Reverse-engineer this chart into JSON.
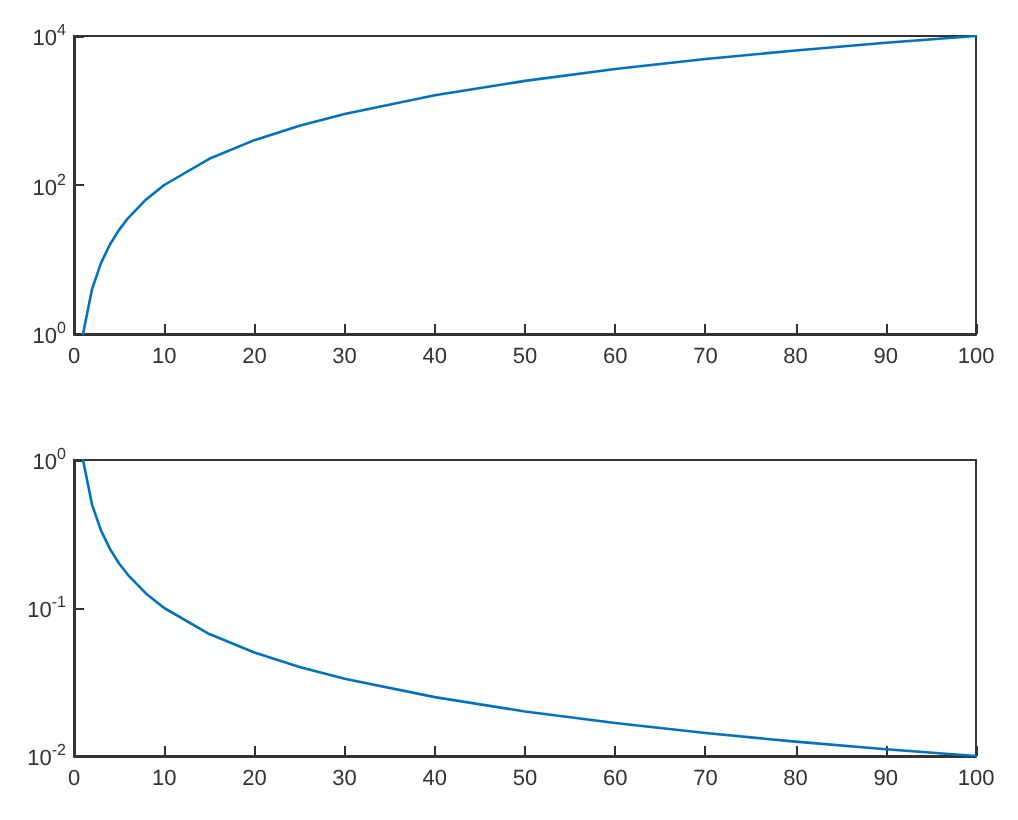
{
  "chart_data": [
    {
      "type": "line",
      "x": [
        1,
        2,
        3,
        4,
        5,
        6,
        8,
        10,
        15,
        20,
        25,
        30,
        40,
        50,
        60,
        70,
        80,
        90,
        100
      ],
      "series": [
        {
          "color": "#0072bd",
          "values": [
            1,
            4,
            9,
            16,
            25,
            36,
            64,
            100,
            225,
            400,
            625,
            900,
            1600,
            2500,
            3600,
            4900,
            6400,
            8100,
            10000
          ]
        }
      ],
      "xlim": [
        0,
        100
      ],
      "xticks": [
        0,
        10,
        20,
        30,
        40,
        50,
        60,
        70,
        80,
        90,
        100
      ],
      "ylim": [
        1,
        10000
      ],
      "yticks": [
        {
          "value": 1,
          "label": "10$^{0}$"
        },
        {
          "value": 100,
          "label": "10$^{2}$"
        },
        {
          "value": 10000,
          "label": "10$^{4}$"
        }
      ],
      "log": "y",
      "marker": "none",
      "line_style": "solid"
    },
    {
      "type": "line",
      "x": [
        1,
        2,
        3,
        4,
        5,
        6,
        8,
        10,
        15,
        20,
        25,
        30,
        40,
        50,
        60,
        70,
        80,
        90,
        100
      ],
      "series": [
        {
          "color": "#0072bd",
          "values": [
            1,
            0.5,
            0.333,
            0.25,
            0.2,
            0.167,
            0.125,
            0.1,
            0.0667,
            0.05,
            0.04,
            0.0333,
            0.025,
            0.02,
            0.0167,
            0.0143,
            0.0125,
            0.0111,
            0.01
          ]
        }
      ],
      "xlim": [
        0,
        100
      ],
      "xticks": [
        0,
        10,
        20,
        30,
        40,
        50,
        60,
        70,
        80,
        90,
        100
      ],
      "ylim": [
        0.01,
        1
      ],
      "yticks": [
        {
          "value": 0.01,
          "label": "10$^{-2}$"
        },
        {
          "value": 0.1,
          "label": "10$^{-1}$"
        },
        {
          "value": 1,
          "label": "10$^{0}$"
        }
      ],
      "log": "y",
      "marker": "none",
      "line_style": "solid"
    }
  ]
}
